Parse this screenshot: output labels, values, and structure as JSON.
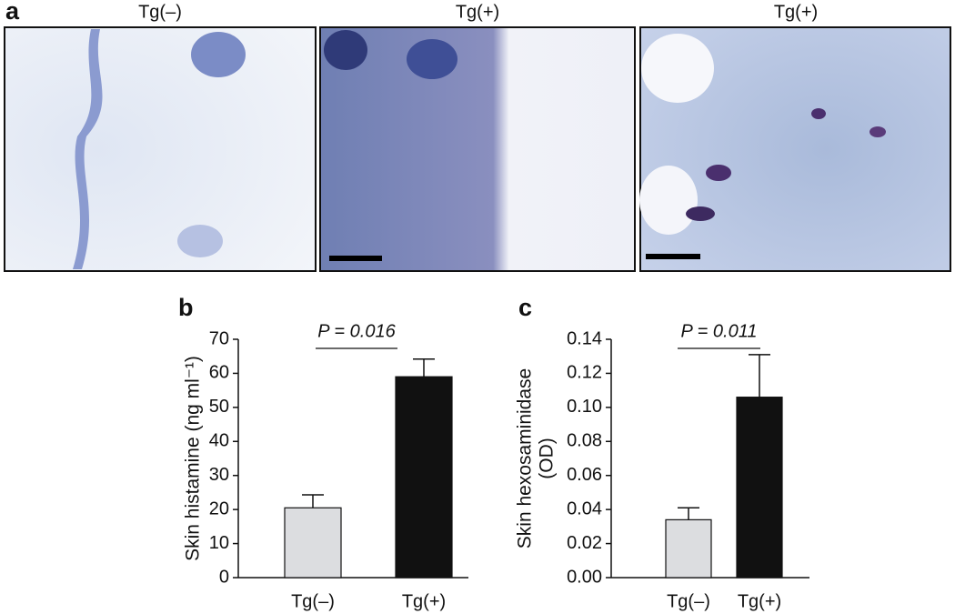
{
  "panel_a": {
    "label": "a",
    "images": [
      {
        "title": "Tg(–)"
      },
      {
        "title": "Tg(+)"
      },
      {
        "title": "Tg(+)"
      }
    ]
  },
  "chart_data": [
    {
      "type": "bar",
      "panel_label": "b",
      "y_label": [
        "Skin histamine (ng ml⁻¹)"
      ],
      "categories": [
        "Tg(–)",
        "Tg(+)"
      ],
      "values": [
        20.5,
        59
      ],
      "errors": [
        3.8,
        5.2
      ],
      "colors": [
        "#dcdde0",
        "#111111"
      ],
      "ylim": [
        0,
        70
      ],
      "yticks": [
        0,
        10,
        20,
        30,
        40,
        50,
        60,
        70
      ],
      "annotation": "P = 0.016"
    },
    {
      "type": "bar",
      "panel_label": "c",
      "y_label": [
        "Skin hexosaminidase",
        "(OD)"
      ],
      "categories": [
        "Tg(–)",
        "Tg(+)"
      ],
      "values": [
        0.034,
        0.106
      ],
      "errors": [
        0.007,
        0.025
      ],
      "colors": [
        "#dcdde0",
        "#111111"
      ],
      "ylim": [
        0,
        0.14
      ],
      "yticks": [
        {
          "value": 0,
          "label": "0.00"
        },
        {
          "value": 0.02,
          "label": "0.02"
        },
        {
          "value": 0.04,
          "label": "0.04"
        },
        {
          "value": 0.06,
          "label": "0.06"
        },
        {
          "value": 0.08,
          "label": "0.08"
        },
        {
          "value": 0.1,
          "label": "0.10"
        },
        {
          "value": 0.12,
          "label": "0.12"
        },
        {
          "value": 0.14,
          "label": "0.14"
        }
      ],
      "annotation": "P = 0.011"
    }
  ]
}
